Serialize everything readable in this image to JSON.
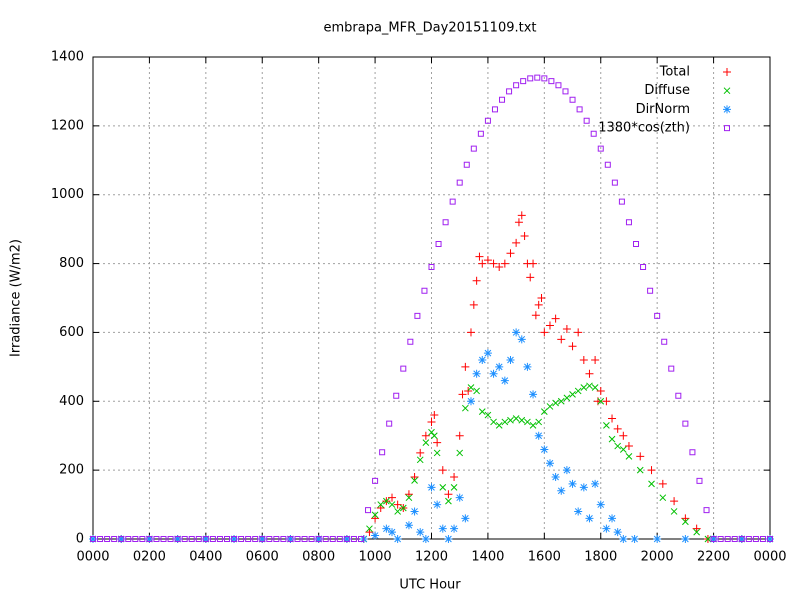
{
  "chart_data": {
    "type": "scatter",
    "title": "embrapa_MFR_Day20151109.txt",
    "x_label": "UTC Hour",
    "y_label": "Irradiance (W/m2)",
    "xlim": [
      0,
      24
    ],
    "ylim": [
      0,
      1400
    ],
    "xticks": [
      {
        "value": 0,
        "label": "0000"
      },
      {
        "value": 2,
        "label": "0200"
      },
      {
        "value": 4,
        "label": "0400"
      },
      {
        "value": 6,
        "label": "0600"
      },
      {
        "value": 8,
        "label": "0800"
      },
      {
        "value": 10,
        "label": "1000"
      },
      {
        "value": 12,
        "label": "1200"
      },
      {
        "value": 14,
        "label": "1400"
      },
      {
        "value": 16,
        "label": "1600"
      },
      {
        "value": 18,
        "label": "1800"
      },
      {
        "value": 20,
        "label": "2000"
      },
      {
        "value": 22,
        "label": "2200"
      },
      {
        "value": 24,
        "label": "0000"
      }
    ],
    "yticks": [
      0,
      200,
      400,
      600,
      800,
      1000,
      1200,
      1400
    ],
    "grid": true,
    "legend": "top right",
    "series": [
      {
        "name": "Total",
        "color": "#ff0000",
        "marker": "plus",
        "x": [
          0,
          1,
          2,
          3,
          4,
          5,
          6,
          7,
          8,
          9,
          9.6,
          9.8,
          10,
          10.2,
          10.4,
          10.6,
          10.8,
          11,
          11.2,
          11.4,
          11.6,
          11.8,
          12,
          12.1,
          12.2,
          12.4,
          12.6,
          12.8,
          13,
          13.1,
          13.2,
          13.3,
          13.4,
          13.5,
          13.6,
          13.7,
          13.8,
          14,
          14.2,
          14.4,
          14.6,
          14.8,
          15,
          15.1,
          15.2,
          15.3,
          15.4,
          15.5,
          15.6,
          15.7,
          15.8,
          15.9,
          16,
          16.2,
          16.4,
          16.6,
          16.8,
          17,
          17.2,
          17.4,
          17.6,
          17.8,
          17.9,
          18,
          18.2,
          18.4,
          18.6,
          18.8,
          19,
          19.4,
          19.8,
          20.2,
          20.6,
          21,
          21.4,
          21.8,
          22,
          23,
          24
        ],
        "values": [
          0,
          0,
          0,
          0,
          0,
          0,
          0,
          0,
          0,
          0,
          0,
          20,
          60,
          90,
          110,
          120,
          100,
          90,
          130,
          180,
          250,
          300,
          340,
          360,
          280,
          200,
          130,
          180,
          300,
          420,
          500,
          430,
          600,
          680,
          750,
          820,
          800,
          810,
          800,
          790,
          800,
          830,
          860,
          920,
          940,
          880,
          800,
          760,
          800,
          650,
          680,
          700,
          600,
          620,
          640,
          580,
          610,
          560,
          600,
          520,
          480,
          520,
          400,
          430,
          400,
          350,
          320,
          300,
          270,
          240,
          200,
          160,
          110,
          60,
          30,
          0,
          0,
          0,
          0
        ]
      },
      {
        "name": "Diffuse",
        "color": "#00c000",
        "marker": "cross",
        "x": [
          0,
          1,
          2,
          3,
          4,
          5,
          6,
          7,
          8,
          9,
          9.6,
          9.8,
          10,
          10.2,
          10.4,
          10.6,
          10.8,
          11,
          11.2,
          11.4,
          11.6,
          11.8,
          12,
          12.1,
          12.2,
          12.4,
          12.6,
          12.8,
          13,
          13.2,
          13.4,
          13.6,
          13.8,
          14,
          14.2,
          14.4,
          14.6,
          14.8,
          15,
          15.2,
          15.4,
          15.6,
          15.8,
          16,
          16.2,
          16.4,
          16.6,
          16.8,
          17,
          17.2,
          17.4,
          17.6,
          17.8,
          18,
          18.2,
          18.4,
          18.6,
          18.8,
          19,
          19.4,
          19.8,
          20.2,
          20.6,
          21,
          21.4,
          21.8,
          22,
          23,
          24
        ],
        "values": [
          0,
          0,
          0,
          0,
          0,
          0,
          0,
          0,
          0,
          0,
          0,
          30,
          70,
          100,
          110,
          100,
          80,
          90,
          120,
          170,
          230,
          280,
          310,
          300,
          250,
          150,
          110,
          150,
          250,
          380,
          440,
          430,
          370,
          360,
          340,
          330,
          340,
          345,
          350,
          345,
          340,
          330,
          340,
          370,
          385,
          395,
          400,
          410,
          420,
          430,
          440,
          445,
          440,
          400,
          330,
          290,
          270,
          260,
          240,
          200,
          160,
          120,
          80,
          50,
          20,
          0,
          0,
          0,
          0
        ]
      },
      {
        "name": "DirNorm",
        "color": "#1e90ff",
        "marker": "star",
        "x": [
          0,
          1,
          2,
          3,
          4,
          5,
          6,
          7,
          8,
          9,
          9.6,
          10,
          10.4,
          10.6,
          10.8,
          11.2,
          11.4,
          11.6,
          11.8,
          12,
          12.2,
          12.4,
          12.6,
          12.8,
          13,
          13.2,
          13.4,
          13.6,
          13.8,
          14,
          14.2,
          14.4,
          14.6,
          14.8,
          15,
          15.2,
          15.4,
          15.6,
          15.8,
          16,
          16.2,
          16.4,
          16.6,
          16.8,
          17,
          17.2,
          17.4,
          17.6,
          17.8,
          18,
          18.2,
          18.4,
          18.6,
          18.8,
          19.2,
          20,
          21,
          22,
          23,
          24
        ],
        "values": [
          0,
          0,
          0,
          0,
          0,
          0,
          0,
          0,
          0,
          0,
          0,
          10,
          30,
          20,
          0,
          40,
          80,
          20,
          0,
          150,
          100,
          30,
          0,
          30,
          120,
          60,
          400,
          480,
          520,
          540,
          480,
          500,
          460,
          520,
          600,
          580,
          500,
          420,
          300,
          260,
          220,
          180,
          140,
          200,
          160,
          80,
          150,
          60,
          160,
          100,
          30,
          60,
          20,
          0,
          0,
          0,
          0,
          0,
          0,
          0
        ]
      },
      {
        "name": "1380*cos(zth)",
        "color": "#a020f0",
        "marker": "square",
        "x": [
          0,
          0.25,
          0.5,
          0.75,
          1,
          1.25,
          1.5,
          1.75,
          2,
          2.25,
          2.5,
          2.75,
          3,
          3.25,
          3.5,
          3.75,
          4,
          4.25,
          4.5,
          4.75,
          5,
          5.25,
          5.5,
          5.75,
          6,
          6.25,
          6.5,
          6.75,
          7,
          7.25,
          7.5,
          7.75,
          8,
          8.25,
          8.5,
          8.75,
          9,
          9.25,
          9.5,
          9.75,
          10,
          10.25,
          10.5,
          10.75,
          11,
          11.25,
          11.5,
          11.75,
          12,
          12.25,
          12.5,
          12.75,
          13,
          13.25,
          13.5,
          13.75,
          14,
          14.25,
          14.5,
          14.75,
          15,
          15.25,
          15.5,
          15.75,
          16,
          16.25,
          16.5,
          16.75,
          17,
          17.25,
          17.5,
          17.75,
          18,
          18.25,
          18.5,
          18.75,
          19,
          19.25,
          19.5,
          19.75,
          20,
          20.25,
          20.5,
          20.75,
          21,
          21.25,
          21.5,
          21.75,
          22,
          22.25,
          22.5,
          22.75,
          23,
          23.25,
          23.5,
          23.75,
          24
        ],
        "values": [
          0,
          0,
          0,
          0,
          0,
          0,
          0,
          0,
          0,
          0,
          0,
          0,
          0,
          0,
          0,
          0,
          0,
          0,
          0,
          0,
          0,
          0,
          0,
          0,
          0,
          0,
          0,
          0,
          0,
          0,
          0,
          0,
          0,
          0,
          0,
          0,
          0,
          0,
          0,
          84,
          169,
          252,
          335,
          416,
          495,
          573,
          648,
          721,
          790,
          857,
          920,
          980,
          1035,
          1087,
          1134,
          1177,
          1215,
          1248,
          1276,
          1300,
          1318,
          1330,
          1338,
          1340,
          1338,
          1330,
          1318,
          1300,
          1276,
          1248,
          1215,
          1177,
          1134,
          1087,
          1035,
          980,
          920,
          857,
          790,
          721,
          648,
          573,
          495,
          416,
          335,
          252,
          169,
          84,
          0,
          0,
          0,
          0,
          0,
          0,
          0,
          0,
          0
        ]
      }
    ]
  }
}
